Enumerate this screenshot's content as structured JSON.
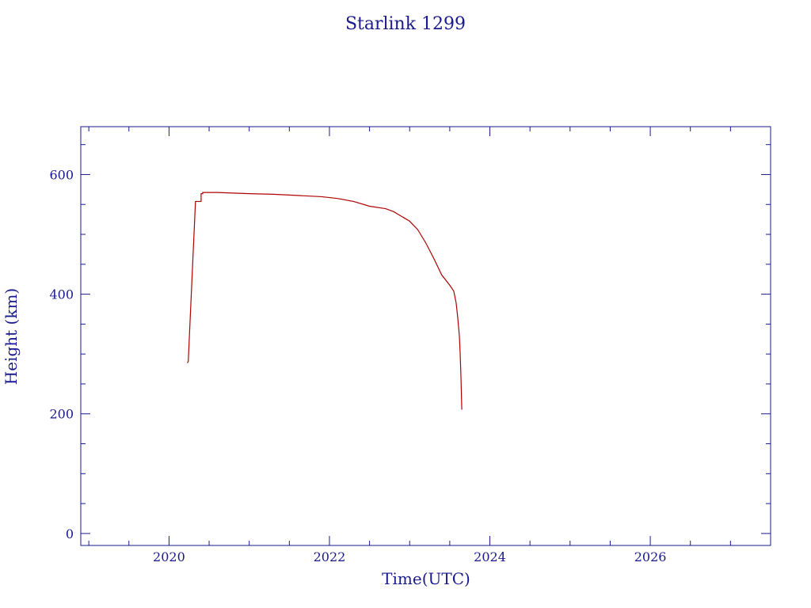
{
  "chart_data": {
    "type": "line",
    "title": "Starlink 1299",
    "xlabel": "Time(UTC)",
    "ylabel": "Height (km)",
    "xlim": [
      2018.9,
      2027.5
    ],
    "ylim": [
      -20,
      680
    ],
    "x_ticks": [
      2020,
      2022,
      2024,
      2026
    ],
    "y_ticks": [
      0,
      200,
      400,
      600
    ],
    "grid": false,
    "line_color": "#b00000",
    "axis_color": "#1a1a8c",
    "series": [
      {
        "x": [
          2020.23,
          2020.24,
          2020.33,
          2020.36,
          2020.4,
          2020.4,
          2020.42,
          2020.42,
          2020.6,
          2020.8,
          2021.0,
          2021.3,
          2021.6,
          2021.9,
          2022.1,
          2022.3,
          2022.5,
          2022.7,
          2022.8,
          2022.9,
          2023.0,
          2023.1,
          2023.2,
          2023.3,
          2023.4,
          2023.5,
          2023.55,
          2023.58,
          2023.6,
          2023.62,
          2023.63,
          2023.64,
          2023.65
        ],
        "y": [
          285,
          288,
          555,
          555,
          555,
          568,
          568,
          570,
          570,
          569,
          568,
          567,
          565,
          563,
          560,
          555,
          547,
          543,
          538,
          530,
          522,
          508,
          486,
          460,
          432,
          415,
          405,
          385,
          360,
          330,
          300,
          260,
          207
        ]
      }
    ]
  }
}
